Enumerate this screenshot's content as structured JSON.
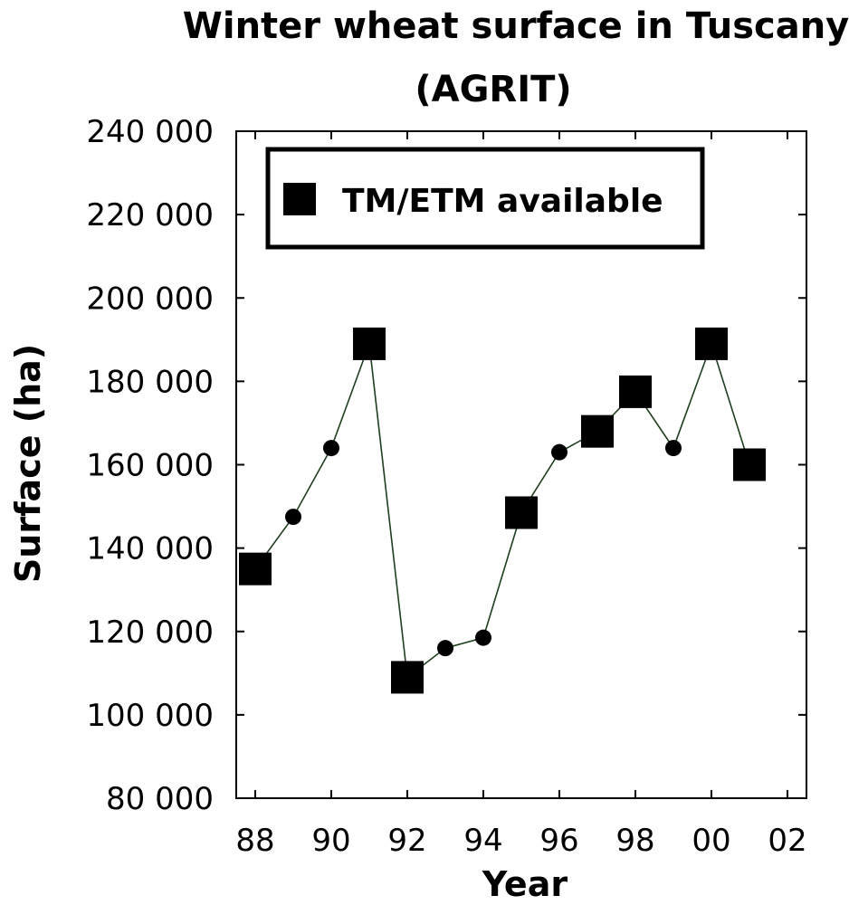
{
  "chart_data": {
    "type": "line",
    "title": "Winter wheat surface in Tuscany",
    "subtitle": "(AGRIT)",
    "xlabel": "Year",
    "ylabel": "Surface (ha)",
    "xlim": [
      1987.5,
      2002.5
    ],
    "ylim": [
      80000,
      240000
    ],
    "x_ticks": [
      {
        "value": 1988,
        "label": "88"
      },
      {
        "value": 1990,
        "label": "90"
      },
      {
        "value": 1992,
        "label": "92"
      },
      {
        "value": 1994,
        "label": "94"
      },
      {
        "value": 1996,
        "label": "96"
      },
      {
        "value": 1998,
        "label": "98"
      },
      {
        "value": 2000,
        "label": "00"
      },
      {
        "value": 2002,
        "label": "02"
      }
    ],
    "y_ticks": [
      {
        "value": 80000,
        "label": "80 000"
      },
      {
        "value": 100000,
        "label": "100 000"
      },
      {
        "value": 120000,
        "label": "120 000"
      },
      {
        "value": 140000,
        "label": "140 000"
      },
      {
        "value": 160000,
        "label": "160 000"
      },
      {
        "value": 180000,
        "label": "180 000"
      },
      {
        "value": 200000,
        "label": "200 000"
      },
      {
        "value": 220000,
        "label": "220 000"
      },
      {
        "value": 240000,
        "label": "240 000"
      }
    ],
    "legend": {
      "label": "TM/ETM available",
      "placement": "top-left"
    },
    "points": [
      {
        "x": 1988,
        "y": 135000,
        "tm_etm_available": true
      },
      {
        "x": 1989,
        "y": 147500,
        "tm_etm_available": false
      },
      {
        "x": 1990,
        "y": 164000,
        "tm_etm_available": false
      },
      {
        "x": 1991,
        "y": 189000,
        "tm_etm_available": true
      },
      {
        "x": 1992,
        "y": 109000,
        "tm_etm_available": true
      },
      {
        "x": 1993,
        "y": 116000,
        "tm_etm_available": false
      },
      {
        "x": 1994,
        "y": 118500,
        "tm_etm_available": false
      },
      {
        "x": 1995,
        "y": 148500,
        "tm_etm_available": true
      },
      {
        "x": 1996,
        "y": 163000,
        "tm_etm_available": false
      },
      {
        "x": 1997,
        "y": 168000,
        "tm_etm_available": true
      },
      {
        "x": 1998,
        "y": 177500,
        "tm_etm_available": true
      },
      {
        "x": 1999,
        "y": 164000,
        "tm_etm_available": false
      },
      {
        "x": 2000,
        "y": 189000,
        "tm_etm_available": true
      },
      {
        "x": 2001,
        "y": 160000,
        "tm_etm_available": true
      }
    ],
    "colors": {
      "line": "#1f3f1f",
      "marker": "#000000"
    }
  }
}
